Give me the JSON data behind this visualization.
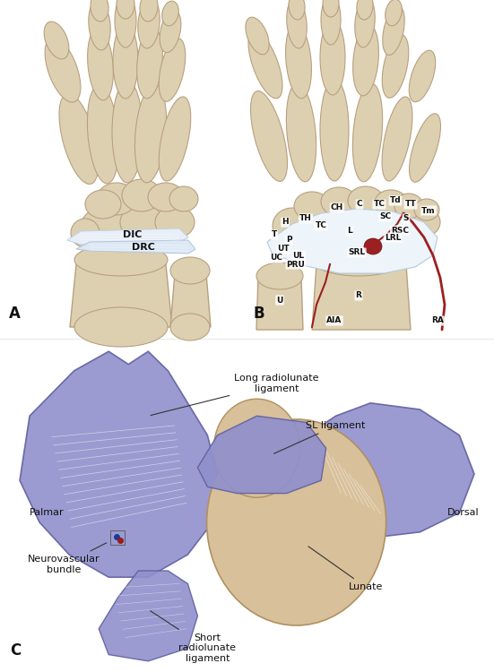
{
  "bg_color": "#ffffff",
  "bone_fill": "#ddd0b0",
  "bone_edge": "#b8a080",
  "bone_light": "#e8dcc0",
  "lig_fill": "#eef4fa",
  "lig_edge": "#c0d0e0",
  "pur_fill": "#9090cc",
  "pur_edge": "#6060a0",
  "pur_dark": "#7070b0",
  "red_art": "#9b2020",
  "dark_red": "#6b1010",
  "text_col": "#111111",
  "panel_labels": [
    "A",
    "B",
    "C"
  ]
}
